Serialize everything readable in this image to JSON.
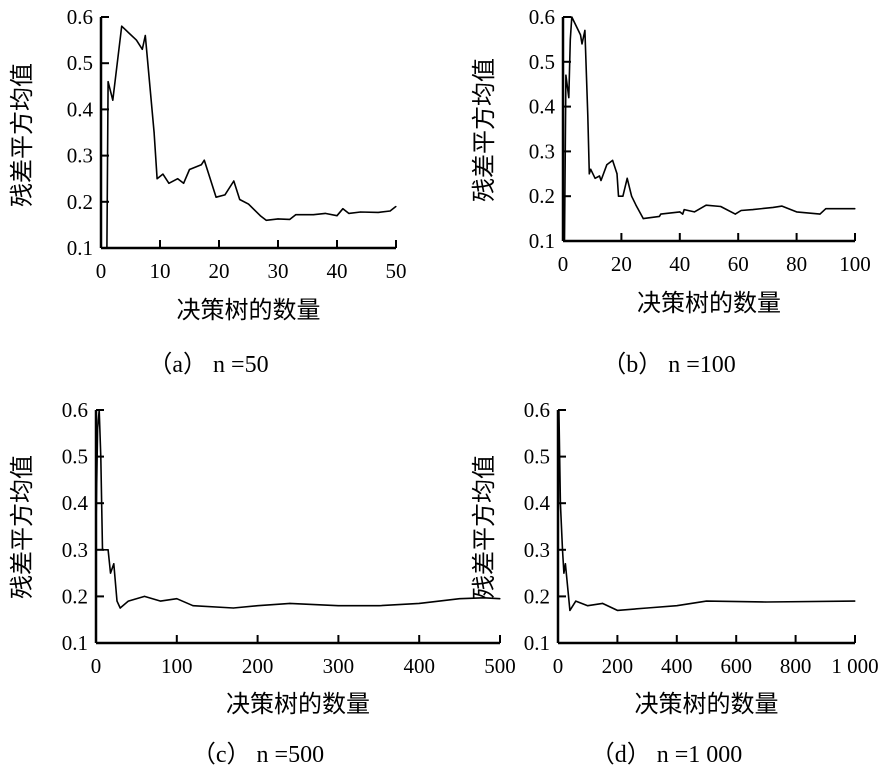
{
  "chart_data": [
    {
      "type": "line",
      "title": "",
      "caption": "（a） n =50",
      "xlabel": "决策树的数量",
      "ylabel": "残差平方均值",
      "xlim": [
        0,
        50
      ],
      "ylim": [
        0.1,
        0.6
      ],
      "xticks": [
        0,
        10,
        20,
        30,
        40,
        50
      ],
      "xtick_labels": [
        "0",
        "10",
        "20",
        "30",
        "40",
        "50"
      ],
      "yticks": [
        0.1,
        0.2,
        0.3,
        0.4,
        0.5,
        0.6
      ],
      "ytick_labels": [
        "0.1",
        "0.2",
        "0.3",
        "0.4",
        "0.5",
        "0.6"
      ],
      "x": [
        1,
        1.2,
        2,
        3.5,
        6,
        7,
        7.5,
        9,
        9.5,
        10.5,
        11.5,
        13,
        14,
        15,
        17,
        17.5,
        19.5,
        21,
        22.5,
        23.5,
        25,
        27,
        28,
        30,
        32,
        33,
        36,
        38,
        40,
        41,
        42,
        44,
        47,
        49,
        50
      ],
      "y": [
        0.1,
        0.46,
        0.42,
        0.58,
        0.55,
        0.53,
        0.56,
        0.35,
        0.25,
        0.26,
        0.24,
        0.25,
        0.24,
        0.27,
        0.28,
        0.29,
        0.21,
        0.215,
        0.245,
        0.205,
        0.195,
        0.17,
        0.16,
        0.163,
        0.162,
        0.172,
        0.172,
        0.175,
        0.17,
        0.185,
        0.175,
        0.178,
        0.177,
        0.18,
        0.19
      ]
    },
    {
      "type": "line",
      "title": "",
      "caption": "（b） n =100",
      "xlabel": "决策树的数量",
      "ylabel": "残差平方均值",
      "xlim": [
        0,
        100
      ],
      "ylim": [
        0.1,
        0.6
      ],
      "xticks": [
        0,
        20,
        40,
        60,
        80,
        100
      ],
      "xtick_labels": [
        "0",
        "20",
        "40",
        "60",
        "80",
        "100"
      ],
      "yticks": [
        0.1,
        0.2,
        0.3,
        0.4,
        0.5,
        0.6
      ],
      "ytick_labels": [
        "0.1",
        "0.2",
        "0.3",
        "0.4",
        "0.5",
        "0.6"
      ],
      "x": [
        0.5,
        1,
        2,
        2.5,
        3,
        6,
        6.5,
        7.5,
        8.5,
        9,
        9.5,
        11,
        12.5,
        13,
        15,
        17,
        18.5,
        19,
        20.5,
        22,
        23.5,
        25,
        27.5,
        33,
        33.5,
        40,
        41,
        41.5,
        45,
        49,
        54,
        59,
        61,
        65,
        72,
        75,
        80,
        88,
        90,
        100
      ],
      "y": [
        0.1,
        0.47,
        0.42,
        0.55,
        0.6,
        0.56,
        0.54,
        0.57,
        0.38,
        0.25,
        0.26,
        0.24,
        0.245,
        0.235,
        0.27,
        0.28,
        0.25,
        0.2,
        0.2,
        0.24,
        0.2,
        0.18,
        0.15,
        0.155,
        0.16,
        0.165,
        0.16,
        0.17,
        0.165,
        0.18,
        0.177,
        0.16,
        0.168,
        0.17,
        0.175,
        0.178,
        0.165,
        0.16,
        0.172,
        0.172
      ]
    },
    {
      "type": "line",
      "title": "",
      "caption": "（c） n =500",
      "xlabel": "决策树的数量",
      "ylabel": "残差平方均值",
      "xlim": [
        0,
        500
      ],
      "ylim": [
        0.1,
        0.6
      ],
      "xticks": [
        0,
        100,
        200,
        300,
        400,
        500
      ],
      "xtick_labels": [
        "0",
        "100",
        "200",
        "300",
        "400",
        "500"
      ],
      "yticks": [
        0.1,
        0.2,
        0.3,
        0.4,
        0.5,
        0.6
      ],
      "ytick_labels": [
        "0.1",
        "0.2",
        "0.3",
        "0.4",
        "0.5",
        "0.6"
      ],
      "x": [
        0,
        2,
        4,
        6,
        8,
        15,
        18,
        22,
        26,
        30,
        40,
        60,
        80,
        100,
        120,
        170,
        200,
        240,
        300,
        350,
        400,
        450,
        480,
        500
      ],
      "y": [
        0.35,
        0.56,
        0.6,
        0.5,
        0.3,
        0.3,
        0.25,
        0.27,
        0.19,
        0.175,
        0.19,
        0.2,
        0.19,
        0.195,
        0.18,
        0.175,
        0.18,
        0.185,
        0.18,
        0.18,
        0.185,
        0.195,
        0.197,
        0.195
      ]
    },
    {
      "type": "line",
      "title": "",
      "caption": "（d） n =1 000",
      "xlabel": "决策树的数量",
      "ylabel": "残差平方均值",
      "xlim": [
        0,
        1000
      ],
      "ylim": [
        0.1,
        0.6
      ],
      "xticks": [
        0,
        200,
        400,
        600,
        800,
        1000
      ],
      "xtick_labels": [
        "0",
        "200",
        "400",
        "600",
        "800",
        "1 000"
      ],
      "yticks": [
        0.1,
        0.2,
        0.3,
        0.4,
        0.5,
        0.6
      ],
      "ytick_labels": [
        "0.1",
        "0.2",
        "0.3",
        "0.4",
        "0.5",
        "0.6"
      ],
      "x": [
        0,
        3,
        8,
        15,
        20,
        25,
        40,
        60,
        100,
        150,
        200,
        300,
        400,
        500,
        700,
        1000
      ],
      "y": [
        0.3,
        0.6,
        0.4,
        0.3,
        0.25,
        0.27,
        0.17,
        0.19,
        0.18,
        0.185,
        0.17,
        0.175,
        0.18,
        0.19,
        0.188,
        0.19
      ]
    }
  ]
}
